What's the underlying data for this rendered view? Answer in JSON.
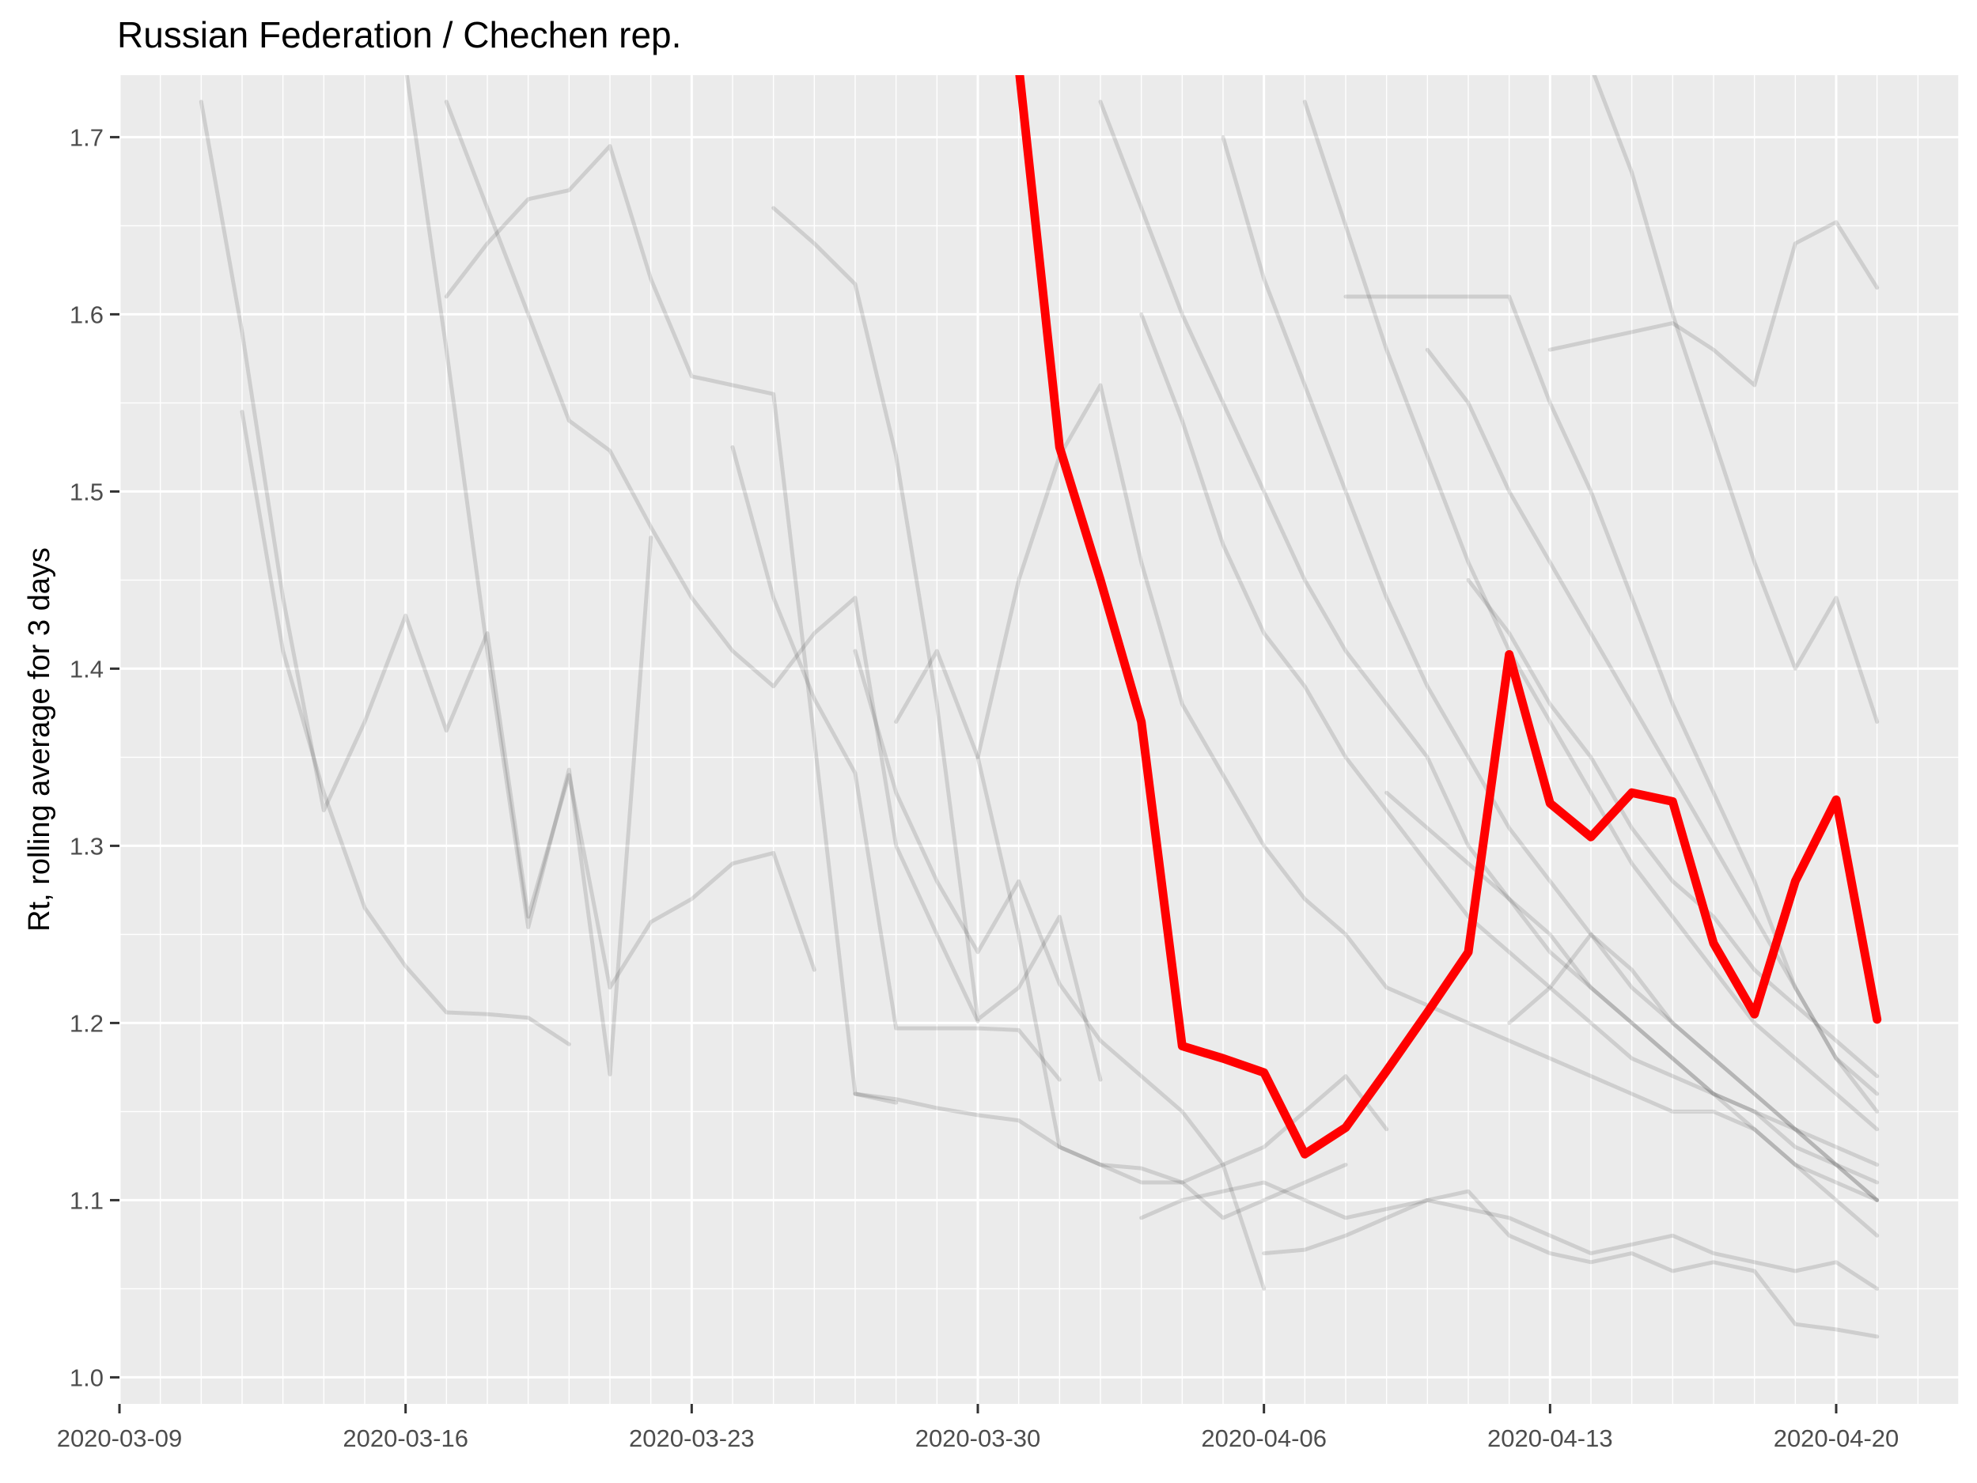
{
  "chart_data": {
    "type": "line",
    "title": "Russian Federation / Chechen rep.",
    "xlabel": "",
    "ylabel": "Rt, rolling average for 3 days",
    "x_tick_labels": [
      "2020-03-09",
      "2020-03-16",
      "2020-03-23",
      "2020-03-30",
      "2020-04-06",
      "2020-04-13",
      "2020-04-20"
    ],
    "y_tick_labels": [
      "1.0",
      "1.1",
      "1.2",
      "1.3",
      "1.4",
      "1.5",
      "1.6",
      "1.7"
    ],
    "xlim": [
      "2020-03-09",
      "2020-04-23"
    ],
    "ylim": [
      0.985,
      1.735
    ],
    "grid": true,
    "legend": "none",
    "colors": {
      "highlight": "#ff0000",
      "background_series": "#000000",
      "panel": "#ebebeb",
      "grid": "#ffffff",
      "axis_text": "#4d4d4d"
    },
    "highlight_series": {
      "x": [
        "2020-03-31",
        "2020-04-01",
        "2020-04-02",
        "2020-04-03",
        "2020-04-04",
        "2020-04-05",
        "2020-04-06",
        "2020-04-07",
        "2020-04-08",
        "2020-04-09",
        "2020-04-10",
        "2020-04-11",
        "2020-04-12",
        "2020-04-13",
        "2020-04-14",
        "2020-04-15",
        "2020-04-16",
        "2020-04-17",
        "2020-04-18",
        "2020-04-19",
        "2020-04-20",
        "2020-04-21"
      ],
      "values": [
        1.74,
        1.525,
        1.45,
        1.37,
        1.187,
        1.18,
        1.172,
        1.126,
        1.141,
        1.173,
        1.206,
        1.24,
        1.408,
        1.324,
        1.305,
        1.33,
        1.325,
        1.245,
        1.205,
        1.28,
        1.326,
        1.202
      ]
    },
    "background_series": [
      {
        "x": [
          "2020-03-11",
          "2020-03-12",
          "2020-03-13",
          "2020-03-14",
          "2020-03-15",
          "2020-03-16",
          "2020-03-17",
          "2020-03-18",
          "2020-03-19",
          "2020-03-20",
          "2020-03-21",
          "2020-03-22",
          "2020-03-23",
          "2020-03-24",
          "2020-03-25",
          "2020-03-26"
        ],
        "values": [
          1.72,
          1.59,
          1.44,
          1.32,
          1.37,
          1.43,
          1.365,
          1.42,
          1.26,
          1.34,
          1.22,
          1.257,
          1.27,
          1.29,
          1.296,
          1.23
        ]
      },
      {
        "x": [
          "2020-03-12",
          "2020-03-13",
          "2020-03-14",
          "2020-03-15",
          "2020-03-16",
          "2020-03-17",
          "2020-03-18",
          "2020-03-19",
          "2020-03-20"
        ],
        "values": [
          1.545,
          1.41,
          1.33,
          1.265,
          1.232,
          1.206,
          1.205,
          1.203,
          1.188
        ]
      },
      {
        "x": [
          "2020-03-16",
          "2020-03-17",
          "2020-03-18",
          "2020-03-19",
          "2020-03-20",
          "2020-03-21",
          "2020-03-22"
        ],
        "values": [
          1.74,
          1.58,
          1.41,
          1.254,
          1.343,
          1.171,
          1.474
        ]
      },
      {
        "x": [
          "2020-03-17",
          "2020-03-18",
          "2020-03-19",
          "2020-03-20",
          "2020-03-21",
          "2020-03-22",
          "2020-03-23",
          "2020-03-24",
          "2020-03-25",
          "2020-03-26",
          "2020-03-27",
          "2020-03-28"
        ],
        "values": [
          1.61,
          1.64,
          1.665,
          1.67,
          1.695,
          1.62,
          1.565,
          1.56,
          1.555,
          1.36,
          1.16,
          1.155
        ]
      },
      {
        "x": [
          "2020-03-17",
          "2020-03-18",
          "2020-03-19",
          "2020-03-20",
          "2020-03-21",
          "2020-03-22",
          "2020-03-23",
          "2020-03-24",
          "2020-03-25",
          "2020-03-26",
          "2020-03-27",
          "2020-03-28",
          "2020-03-29",
          "2020-03-30"
        ],
        "values": [
          1.72,
          1.66,
          1.6,
          1.54,
          1.523,
          1.48,
          1.44,
          1.41,
          1.39,
          1.42,
          1.44,
          1.3,
          1.25,
          1.201
        ]
      },
      {
        "x": [
          "2020-03-24",
          "2020-03-25",
          "2020-03-26",
          "2020-03-27",
          "2020-03-28",
          "2020-03-29",
          "2020-03-30",
          "2020-03-31",
          "2020-04-01"
        ],
        "values": [
          1.525,
          1.44,
          1.383,
          1.341,
          1.197,
          1.197,
          1.197,
          1.196,
          1.168
        ]
      },
      {
        "x": [
          "2020-03-25",
          "2020-03-26",
          "2020-03-27",
          "2020-03-28",
          "2020-03-29",
          "2020-03-30",
          "2020-03-31",
          "2020-04-01",
          "2020-04-02"
        ],
        "values": [
          1.66,
          1.64,
          1.617,
          1.52,
          1.38,
          1.202,
          1.22,
          1.26,
          1.168
        ]
      },
      {
        "x": [
          "2020-03-27",
          "2020-03-28",
          "2020-03-29",
          "2020-03-30",
          "2020-03-31",
          "2020-04-01",
          "2020-04-02",
          "2020-04-03",
          "2020-04-04",
          "2020-04-05",
          "2020-04-06"
        ],
        "values": [
          1.41,
          1.33,
          1.28,
          1.24,
          1.28,
          1.222,
          1.19,
          1.17,
          1.15,
          1.12,
          1.05
        ]
      },
      {
        "x": [
          "2020-03-28",
          "2020-03-29",
          "2020-03-30",
          "2020-03-31",
          "2020-04-01",
          "2020-04-02",
          "2020-04-03",
          "2020-04-04",
          "2020-04-05",
          "2020-04-06",
          "2020-04-07",
          "2020-04-08",
          "2020-04-09"
        ],
        "values": [
          1.37,
          1.41,
          1.35,
          1.25,
          1.13,
          1.12,
          1.11,
          1.11,
          1.12,
          1.13,
          1.15,
          1.17,
          1.14
        ]
      },
      {
        "x": [
          "2020-03-27",
          "2020-03-28",
          "2020-03-29",
          "2020-03-30",
          "2020-03-31",
          "2020-04-01",
          "2020-04-02",
          "2020-04-03",
          "2020-04-04",
          "2020-04-05",
          "2020-04-06",
          "2020-04-07",
          "2020-04-08"
        ],
        "values": [
          1.16,
          1.157,
          1.152,
          1.148,
          1.145,
          1.13,
          1.12,
          1.118,
          1.11,
          1.09,
          1.1,
          1.11,
          1.12
        ]
      },
      {
        "x": [
          "2020-03-30",
          "2020-03-31",
          "2020-04-01",
          "2020-04-02",
          "2020-04-03",
          "2020-04-04",
          "2020-04-05",
          "2020-04-06",
          "2020-04-07",
          "2020-04-08",
          "2020-04-09",
          "2020-04-10",
          "2020-04-11",
          "2020-04-12",
          "2020-04-13",
          "2020-04-14",
          "2020-04-15",
          "2020-04-16",
          "2020-04-17",
          "2020-04-18",
          "2020-04-19",
          "2020-04-20",
          "2020-04-21"
        ],
        "values": [
          1.35,
          1.45,
          1.52,
          1.56,
          1.46,
          1.38,
          1.34,
          1.3,
          1.27,
          1.25,
          1.22,
          1.21,
          1.2,
          1.19,
          1.18,
          1.17,
          1.16,
          1.15,
          1.15,
          1.14,
          1.12,
          1.1,
          1.08
        ]
      },
      {
        "x": [
          "2020-04-02",
          "2020-04-03",
          "2020-04-04",
          "2020-04-05",
          "2020-04-06",
          "2020-04-07",
          "2020-04-08",
          "2020-04-09",
          "2020-04-10",
          "2020-04-11",
          "2020-04-12",
          "2020-04-13",
          "2020-04-14",
          "2020-04-15",
          "2020-04-16",
          "2020-04-17",
          "2020-04-18",
          "2020-04-19",
          "2020-04-20",
          "2020-04-21"
        ],
        "values": [
          1.72,
          1.66,
          1.6,
          1.55,
          1.5,
          1.45,
          1.41,
          1.38,
          1.35,
          1.3,
          1.27,
          1.25,
          1.22,
          1.2,
          1.18,
          1.16,
          1.14,
          1.12,
          1.11,
          1.1
        ]
      },
      {
        "x": [
          "2020-04-03",
          "2020-04-04",
          "2020-04-05",
          "2020-04-06",
          "2020-04-07",
          "2020-04-08",
          "2020-04-09",
          "2020-04-10",
          "2020-04-11",
          "2020-04-12",
          "2020-04-13",
          "2020-04-14",
          "2020-04-15",
          "2020-04-16",
          "2020-04-17",
          "2020-04-18",
          "2020-04-19",
          "2020-04-20",
          "2020-04-21"
        ],
        "values": [
          1.6,
          1.54,
          1.47,
          1.42,
          1.39,
          1.35,
          1.32,
          1.29,
          1.26,
          1.24,
          1.22,
          1.2,
          1.18,
          1.17,
          1.16,
          1.15,
          1.14,
          1.12,
          1.11
        ]
      },
      {
        "x": [
          "2020-04-05",
          "2020-04-06",
          "2020-04-07",
          "2020-04-08",
          "2020-04-09",
          "2020-04-10",
          "2020-04-11",
          "2020-04-12",
          "2020-04-13",
          "2020-04-14",
          "2020-04-15",
          "2020-04-16",
          "2020-04-17",
          "2020-04-18",
          "2020-04-19",
          "2020-04-20",
          "2020-04-21"
        ],
        "values": [
          1.7,
          1.62,
          1.56,
          1.5,
          1.44,
          1.39,
          1.35,
          1.31,
          1.28,
          1.25,
          1.22,
          1.2,
          1.18,
          1.16,
          1.14,
          1.13,
          1.12
        ]
      },
      {
        "x": [
          "2020-04-07",
          "2020-04-08",
          "2020-04-09",
          "2020-04-10",
          "2020-04-11",
          "2020-04-12",
          "2020-04-13",
          "2020-04-14",
          "2020-04-15",
          "2020-04-16",
          "2020-04-17",
          "2020-04-18",
          "2020-04-19",
          "2020-04-20",
          "2020-04-21"
        ],
        "values": [
          1.72,
          1.65,
          1.58,
          1.52,
          1.46,
          1.41,
          1.37,
          1.33,
          1.29,
          1.26,
          1.23,
          1.2,
          1.18,
          1.16,
          1.14
        ]
      },
      {
        "x": [
          "2020-04-08",
          "2020-04-09",
          "2020-04-10",
          "2020-04-11",
          "2020-04-12",
          "2020-04-13",
          "2020-04-14",
          "2020-04-15",
          "2020-04-16",
          "2020-04-17",
          "2020-04-18",
          "2020-04-19",
          "2020-04-20",
          "2020-04-21"
        ],
        "values": [
          1.61,
          1.61,
          1.61,
          1.61,
          1.61,
          1.55,
          1.5,
          1.44,
          1.38,
          1.33,
          1.28,
          1.22,
          1.18,
          1.15
        ]
      },
      {
        "x": [
          "2020-04-10",
          "2020-04-11",
          "2020-04-12",
          "2020-04-13",
          "2020-04-14",
          "2020-04-15",
          "2020-04-16",
          "2020-04-17",
          "2020-04-18",
          "2020-04-19",
          "2020-04-20",
          "2020-04-21"
        ],
        "values": [
          1.58,
          1.55,
          1.5,
          1.46,
          1.42,
          1.38,
          1.34,
          1.3,
          1.26,
          1.22,
          1.18,
          1.16
        ]
      },
      {
        "x": [
          "2020-04-13",
          "2020-04-14",
          "2020-04-15",
          "2020-04-16",
          "2020-04-17",
          "2020-04-18",
          "2020-04-19",
          "2020-04-20",
          "2020-04-21"
        ],
        "values": [
          1.58,
          1.585,
          1.59,
          1.595,
          1.58,
          1.56,
          1.64,
          1.652,
          1.615
        ]
      },
      {
        "x": [
          "2020-04-14",
          "2020-04-15",
          "2020-04-16",
          "2020-04-17",
          "2020-04-18",
          "2020-04-19",
          "2020-04-20",
          "2020-04-21"
        ],
        "values": [
          1.74,
          1.68,
          1.6,
          1.53,
          1.46,
          1.4,
          1.44,
          1.37
        ]
      },
      {
        "x": [
          "2020-04-06",
          "2020-04-07",
          "2020-04-08",
          "2020-04-09",
          "2020-04-10",
          "2020-04-11",
          "2020-04-12",
          "2020-04-13",
          "2020-04-14",
          "2020-04-15",
          "2020-04-16",
          "2020-04-17",
          "2020-04-18",
          "2020-04-19",
          "2020-04-20",
          "2020-04-21"
        ],
        "values": [
          1.07,
          1.072,
          1.08,
          1.09,
          1.1,
          1.105,
          1.08,
          1.07,
          1.065,
          1.07,
          1.06,
          1.065,
          1.06,
          1.03,
          1.027,
          1.023
        ]
      },
      {
        "x": [
          "2020-04-03",
          "2020-04-04",
          "2020-04-05",
          "2020-04-06",
          "2020-04-07",
          "2020-04-08",
          "2020-04-09",
          "2020-04-10",
          "2020-04-11",
          "2020-04-12",
          "2020-04-13",
          "2020-04-14",
          "2020-04-15",
          "2020-04-16",
          "2020-04-17",
          "2020-04-18",
          "2020-04-19",
          "2020-04-20",
          "2020-04-21"
        ],
        "values": [
          1.09,
          1.1,
          1.105,
          1.11,
          1.1,
          1.09,
          1.095,
          1.1,
          1.095,
          1.09,
          1.08,
          1.07,
          1.075,
          1.08,
          1.07,
          1.065,
          1.06,
          1.065,
          1.05
        ]
      },
      {
        "x": [
          "2020-04-09",
          "2020-04-10",
          "2020-04-11",
          "2020-04-12",
          "2020-04-13",
          "2020-04-14",
          "2020-04-15",
          "2020-04-16",
          "2020-04-17",
          "2020-04-18",
          "2020-04-19",
          "2020-04-20",
          "2020-04-21"
        ],
        "values": [
          1.33,
          1.31,
          1.29,
          1.27,
          1.24,
          1.22,
          1.2,
          1.18,
          1.16,
          1.15,
          1.13,
          1.12,
          1.1
        ]
      },
      {
        "x": [
          "2020-04-11",
          "2020-04-12",
          "2020-04-13",
          "2020-04-14",
          "2020-04-15",
          "2020-04-16",
          "2020-04-17",
          "2020-04-18",
          "2020-04-19",
          "2020-04-20",
          "2020-04-21"
        ],
        "values": [
          1.45,
          1.42,
          1.38,
          1.35,
          1.31,
          1.28,
          1.26,
          1.23,
          1.21,
          1.19,
          1.17
        ]
      },
      {
        "x": [
          "2020-04-12",
          "2020-04-13",
          "2020-04-14",
          "2020-04-15",
          "2020-04-16",
          "2020-04-17",
          "2020-04-18",
          "2020-04-19",
          "2020-04-20",
          "2020-04-21"
        ],
        "values": [
          1.2,
          1.22,
          1.25,
          1.23,
          1.2,
          1.18,
          1.16,
          1.14,
          1.12,
          1.1
        ]
      }
    ]
  }
}
